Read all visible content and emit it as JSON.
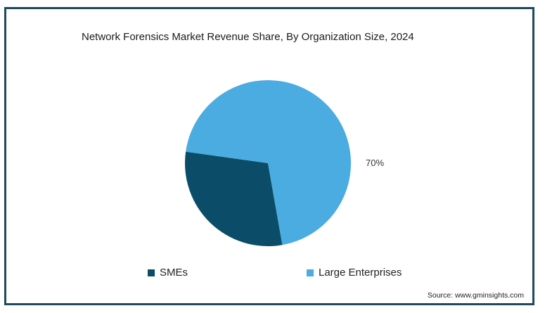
{
  "chart_data": {
    "type": "pie",
    "title": "Network Forensics Market Revenue Share, By Organization Size, 2024",
    "categories": [
      "SMEs",
      "Large Enterprises"
    ],
    "values": [
      30,
      70
    ],
    "colors": [
      "#0b4d68",
      "#4aace0"
    ],
    "data_labels": [
      "",
      "70%"
    ],
    "legend_position": "bottom"
  },
  "source_text": "Source: www.gminsights.com"
}
